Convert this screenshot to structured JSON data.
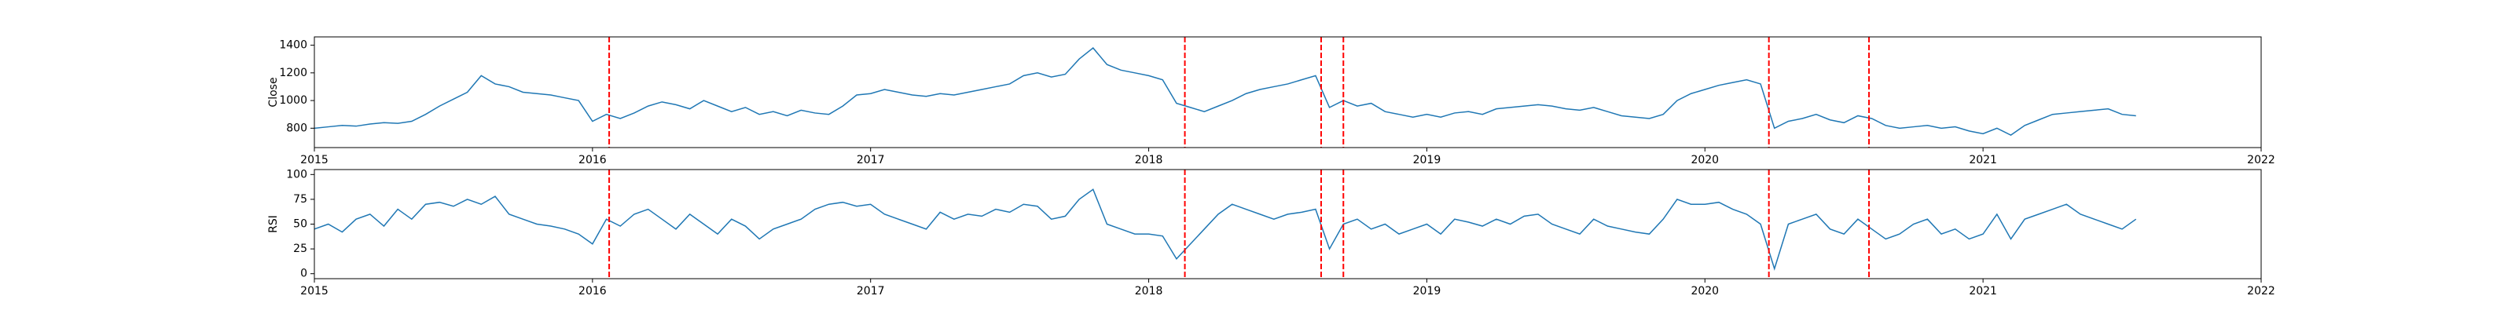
{
  "chart_data": [
    {
      "type": "line",
      "ylabel": "Close",
      "x": [
        2015,
        2015.05,
        2015.1,
        2015.15,
        2015.2,
        2015.25,
        2015.3,
        2015.35,
        2015.4,
        2015.45,
        2015.5,
        2015.55,
        2015.6,
        2015.65,
        2015.7,
        2015.75,
        2015.8,
        2015.85,
        2015.9,
        2015.95,
        2016,
        2016.05,
        2016.1,
        2016.15,
        2016.2,
        2016.25,
        2016.3,
        2016.35,
        2016.4,
        2016.45,
        2016.5,
        2016.55,
        2016.6,
        2016.65,
        2016.7,
        2016.75,
        2016.8,
        2016.85,
        2016.9,
        2016.95,
        2017,
        2017.05,
        2017.1,
        2017.15,
        2017.2,
        2017.25,
        2017.3,
        2017.35,
        2017.4,
        2017.45,
        2017.5,
        2017.55,
        2017.6,
        2017.65,
        2017.7,
        2017.75,
        2017.8,
        2017.85,
        2017.9,
        2017.95,
        2018,
        2018.05,
        2018.1,
        2018.15,
        2018.2,
        2018.25,
        2018.3,
        2018.35,
        2018.4,
        2018.45,
        2018.5,
        2018.55,
        2018.6,
        2018.65,
        2018.7,
        2018.75,
        2018.8,
        2018.85,
        2018.9,
        2018.95,
        2019,
        2019.05,
        2019.1,
        2019.15,
        2019.2,
        2019.25,
        2019.3,
        2019.35,
        2019.4,
        2019.45,
        2019.5,
        2019.55,
        2019.6,
        2019.65,
        2019.7,
        2019.75,
        2019.8,
        2019.85,
        2019.9,
        2019.95,
        2020,
        2020.05,
        2020.1,
        2020.15,
        2020.2,
        2020.25,
        2020.3,
        2020.35,
        2020.4,
        2020.45,
        2020.5,
        2020.55,
        2020.6,
        2020.65,
        2020.7,
        2020.75,
        2020.8,
        2020.85,
        2020.9,
        2020.95,
        2021,
        2021.05,
        2021.1,
        2021.15,
        2021.2,
        2021.25,
        2021.3,
        2021.35,
        2021.4,
        2021.45,
        2021.5,
        2021.55
      ],
      "series": [
        {
          "color": "#1f77b4",
          "values": [
            800,
            810,
            820,
            815,
            830,
            840,
            835,
            850,
            900,
            960,
            1010,
            1060,
            1180,
            1120,
            1100,
            1060,
            1050,
            1040,
            1020,
            1000,
            850,
            900,
            870,
            910,
            960,
            990,
            970,
            940,
            1000,
            960,
            920,
            950,
            900,
            920,
            890,
            930,
            910,
            900,
            960,
            1040,
            1050,
            1080,
            1060,
            1040,
            1030,
            1050,
            1040,
            1060,
            1080,
            1100,
            1120,
            1180,
            1200,
            1170,
            1190,
            1300,
            1380,
            1260,
            1220,
            1200,
            1180,
            1150,
            980,
            950,
            920,
            960,
            1000,
            1050,
            1080,
            1100,
            1120,
            1150,
            1180,
            950,
            1000,
            960,
            980,
            920,
            900,
            880,
            900,
            880,
            910,
            920,
            900,
            940,
            950,
            960,
            970,
            960,
            940,
            930,
            950,
            920,
            890,
            880,
            870,
            900,
            1000,
            1050,
            1080,
            1110,
            1130,
            1150,
            1120,
            800,
            850,
            870,
            900,
            860,
            840,
            890,
            870,
            820,
            800,
            810,
            820,
            800,
            810,
            780,
            760,
            800,
            750,
            820,
            860,
            900,
            910,
            920,
            930,
            940,
            900,
            890
          ]
        }
      ],
      "xlim": [
        2015,
        2022
      ],
      "xticks": [
        2015,
        2016,
        2017,
        2018,
        2019,
        2020,
        2021,
        2022
      ],
      "ylim": [
        660,
        1460
      ],
      "yticks": [
        800,
        1000,
        1200,
        1400
      ],
      "vlines": {
        "color": "#ff0000",
        "x": [
          2016.06,
          2018.13,
          2018.62,
          2018.7,
          2020.23,
          2020.59
        ]
      }
    },
    {
      "type": "line",
      "ylabel": "RSI",
      "x": [
        2015,
        2015.05,
        2015.1,
        2015.15,
        2015.2,
        2015.25,
        2015.3,
        2015.35,
        2015.4,
        2015.45,
        2015.5,
        2015.55,
        2015.6,
        2015.65,
        2015.7,
        2015.75,
        2015.8,
        2015.85,
        2015.9,
        2015.95,
        2016,
        2016.05,
        2016.1,
        2016.15,
        2016.2,
        2016.25,
        2016.3,
        2016.35,
        2016.4,
        2016.45,
        2016.5,
        2016.55,
        2016.6,
        2016.65,
        2016.7,
        2016.75,
        2016.8,
        2016.85,
        2016.9,
        2016.95,
        2017,
        2017.05,
        2017.1,
        2017.15,
        2017.2,
        2017.25,
        2017.3,
        2017.35,
        2017.4,
        2017.45,
        2017.5,
        2017.55,
        2017.6,
        2017.65,
        2017.7,
        2017.75,
        2017.8,
        2017.85,
        2017.9,
        2017.95,
        2018,
        2018.05,
        2018.1,
        2018.15,
        2018.2,
        2018.25,
        2018.3,
        2018.35,
        2018.4,
        2018.45,
        2018.5,
        2018.55,
        2018.6,
        2018.65,
        2018.7,
        2018.75,
        2018.8,
        2018.85,
        2018.9,
        2018.95,
        2019,
        2019.05,
        2019.1,
        2019.15,
        2019.2,
        2019.25,
        2019.3,
        2019.35,
        2019.4,
        2019.45,
        2019.5,
        2019.55,
        2019.6,
        2019.65,
        2019.7,
        2019.75,
        2019.8,
        2019.85,
        2019.9,
        2019.95,
        2020,
        2020.05,
        2020.1,
        2020.15,
        2020.2,
        2020.25,
        2020.3,
        2020.35,
        2020.4,
        2020.45,
        2020.5,
        2020.55,
        2020.6,
        2020.65,
        2020.7,
        2020.75,
        2020.8,
        2020.85,
        2020.9,
        2020.95,
        2021,
        2021.05,
        2021.1,
        2021.15,
        2021.2,
        2021.25,
        2021.3,
        2021.35,
        2021.4,
        2021.45,
        2021.5,
        2021.55
      ],
      "series": [
        {
          "color": "#1f77b4",
          "values": [
            45,
            50,
            42,
            55,
            60,
            48,
            65,
            55,
            70,
            72,
            68,
            75,
            70,
            78,
            60,
            55,
            50,
            48,
            45,
            40,
            30,
            55,
            48,
            60,
            65,
            55,
            45,
            60,
            50,
            40,
            55,
            48,
            35,
            45,
            50,
            55,
            65,
            70,
            72,
            68,
            70,
            60,
            55,
            50,
            45,
            62,
            55,
            60,
            58,
            65,
            62,
            70,
            68,
            55,
            58,
            75,
            85,
            50,
            45,
            40,
            40,
            38,
            15,
            30,
            45,
            60,
            70,
            65,
            60,
            55,
            60,
            62,
            65,
            25,
            50,
            55,
            45,
            50,
            40,
            45,
            50,
            40,
            55,
            52,
            48,
            55,
            50,
            58,
            60,
            50,
            45,
            40,
            55,
            48,
            45,
            42,
            40,
            55,
            75,
            70,
            70,
            72,
            65,
            60,
            50,
            5,
            50,
            55,
            60,
            45,
            40,
            55,
            45,
            35,
            40,
            50,
            55,
            40,
            45,
            35,
            40,
            60,
            35,
            55,
            60,
            65,
            70,
            60,
            55,
            50,
            45,
            55
          ]
        }
      ],
      "xlim": [
        2015,
        2022
      ],
      "xticks": [
        2015,
        2016,
        2017,
        2018,
        2019,
        2020,
        2021,
        2022
      ],
      "ylim": [
        -5,
        105
      ],
      "yticks": [
        0,
        25,
        50,
        75,
        100
      ],
      "vlines": {
        "color": "#ff0000",
        "x": [
          2016.06,
          2018.13,
          2018.62,
          2018.7,
          2020.23,
          2020.59
        ]
      }
    }
  ]
}
